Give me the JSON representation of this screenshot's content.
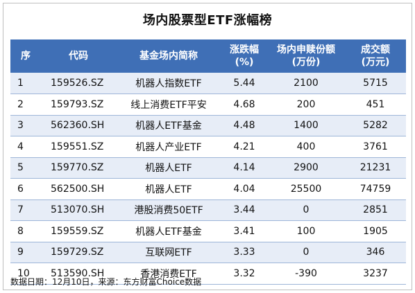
{
  "title": "场内股票型ETF涨幅榜",
  "headers": {
    "idx": "序",
    "code": "代码",
    "name": "基金场内简称",
    "change_l1": "涨跌幅",
    "change_l2": "(%)",
    "shares_l1": "场内申赎份额",
    "shares_l2": "(万份)",
    "volume_l1": "成交额",
    "volume_l2": "(万元)"
  },
  "rows": [
    {
      "idx": "1",
      "code": "159526.SZ",
      "name": "机器人指数ETF",
      "change": "5.44",
      "shares": "2100",
      "volume": "5715"
    },
    {
      "idx": "2",
      "code": "159793.SZ",
      "name": "线上消费ETF平安",
      "change": "4.68",
      "shares": "200",
      "volume": "451"
    },
    {
      "idx": "3",
      "code": "562360.SH",
      "name": "机器人ETF基金",
      "change": "4.48",
      "shares": "1400",
      "volume": "5282"
    },
    {
      "idx": "4",
      "code": "159551.SZ",
      "name": "机器人产业ETF",
      "change": "4.21",
      "shares": "400",
      "volume": "3761"
    },
    {
      "idx": "5",
      "code": "159770.SZ",
      "name": "机器人ETF",
      "change": "4.14",
      "shares": "2900",
      "volume": "21231"
    },
    {
      "idx": "6",
      "code": "562500.SH",
      "name": "机器人ETF",
      "change": "4.04",
      "shares": "25500",
      "volume": "74759"
    },
    {
      "idx": "7",
      "code": "513070.SH",
      "name": "港股消费50ETF",
      "change": "3.44",
      "shares": "0",
      "volume": "2851"
    },
    {
      "idx": "8",
      "code": "159559.SZ",
      "name": "机器人ETF基金",
      "change": "3.41",
      "shares": "100",
      "volume": "1905"
    },
    {
      "idx": "9",
      "code": "159729.SZ",
      "name": "互联网ETF",
      "change": "3.33",
      "shares": "0",
      "volume": "346"
    },
    {
      "idx": "10",
      "code": "513590.SH",
      "name": "香港消费ETF",
      "change": "3.32",
      "shares": "-390",
      "volume": "3237"
    }
  ],
  "footer": "数据日期：12月10日，来源：东方财富Choice数据",
  "colors": {
    "header_bg": "#3f6fb6",
    "row_alt": "#e7edf7",
    "row_line": "#9db5d8"
  }
}
